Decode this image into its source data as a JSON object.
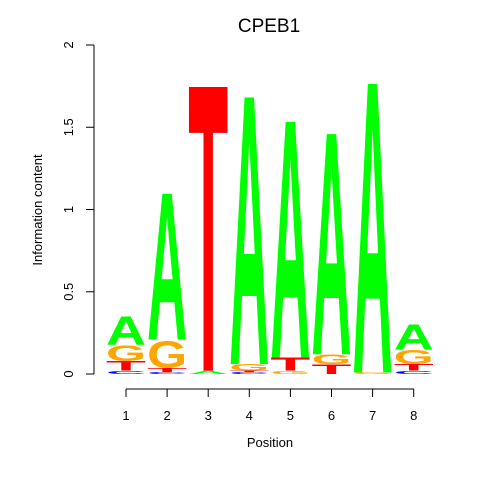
{
  "chart_data": {
    "type": "sequence-logo",
    "title": "CPEB1",
    "xlabel": "Position",
    "ylabel": "Information content",
    "ylim": [
      0,
      2
    ],
    "yticks": [
      "0",
      "0.5",
      "1",
      "1.5",
      "2"
    ],
    "categories": [
      "1",
      "2",
      "3",
      "4",
      "5",
      "6",
      "7",
      "8"
    ],
    "letter_colors": {
      "A": "#00ff00",
      "C": "#0000ff",
      "G": "#ffa500",
      "T": "#ff0000"
    },
    "positions": [
      {
        "position": "1",
        "stack": [
          {
            "letter": "C",
            "height": 0.02
          },
          {
            "letter": "T",
            "height": 0.06
          },
          {
            "letter": "G",
            "height": 0.1
          },
          {
            "letter": "A",
            "height": 0.18
          }
        ]
      },
      {
        "position": "2",
        "stack": [
          {
            "letter": "C",
            "height": 0.01
          },
          {
            "letter": "T",
            "height": 0.03
          },
          {
            "letter": "G",
            "height": 0.17
          },
          {
            "letter": "A",
            "height": 0.94
          }
        ]
      },
      {
        "position": "3",
        "stack": [
          {
            "letter": "A",
            "height": 0.02
          },
          {
            "letter": "T",
            "height": 1.83
          }
        ]
      },
      {
        "position": "4",
        "stack": [
          {
            "letter": "C",
            "height": 0.01
          },
          {
            "letter": "T",
            "height": 0.01
          },
          {
            "letter": "G",
            "height": 0.04
          },
          {
            "letter": "A",
            "height": 1.72
          }
        ]
      },
      {
        "position": "5",
        "stack": [
          {
            "letter": "G",
            "height": 0.02
          },
          {
            "letter": "T",
            "height": 0.08
          },
          {
            "letter": "A",
            "height": 1.52
          }
        ]
      },
      {
        "position": "6",
        "stack": [
          {
            "letter": "T",
            "height": 0.06
          },
          {
            "letter": "G",
            "height": 0.06
          },
          {
            "letter": "A",
            "height": 1.42
          }
        ]
      },
      {
        "position": "7",
        "stack": [
          {
            "letter": "G",
            "height": 0.01
          },
          {
            "letter": "A",
            "height": 1.86
          }
        ]
      },
      {
        "position": "8",
        "stack": [
          {
            "letter": "C",
            "height": 0.02
          },
          {
            "letter": "T",
            "height": 0.04
          },
          {
            "letter": "G",
            "height": 0.09
          },
          {
            "letter": "A",
            "height": 0.16
          }
        ]
      }
    ]
  }
}
